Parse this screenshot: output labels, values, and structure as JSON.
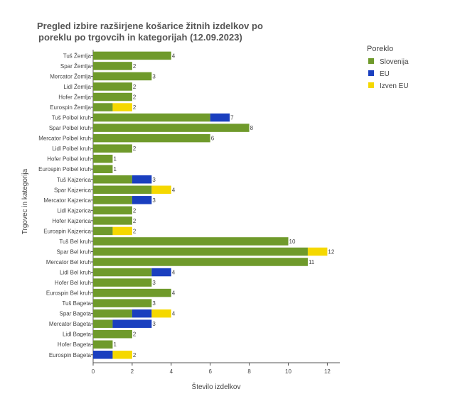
{
  "chart_data": {
    "type": "bar",
    "orientation": "horizontal",
    "stacked": true,
    "title_lines": [
      "Pregled izbire razširjene košarice žitnih izdelkov po",
      "poreklu po trgovcih in kategorijah (12.09.2023)"
    ],
    "xlabel": "Število izdelkov",
    "ylabel": "Trgovec in kategorija",
    "xlim": [
      0,
      12.6
    ],
    "xticks": [
      0,
      2,
      4,
      6,
      8,
      10,
      12
    ],
    "grid": false,
    "legend": {
      "title": "Poreklo",
      "position": "top-right"
    },
    "categories": [
      "Tuš Žemlja",
      "Spar Žemlja",
      "Mercator Žemlja",
      "Lidl Žemlja",
      "Hofer Žemlja",
      "Eurospin Žemlja",
      "Tuš Polbel kruh",
      "Spar Polbel kruh",
      "Mercator Polbel kruh",
      "Lidl Polbel kruh",
      "Hofer Polbel kruh",
      "Eurospin Polbel kruh",
      "Tuš Kajzerica",
      "Spar Kajzerica",
      "Mercator Kajzerica",
      "Lidl Kajzerica",
      "Hofer Kajzerica",
      "Eurospin Kajzerica",
      "Tuš Bel kruh",
      "Spar Bel kruh",
      "Mercator Bel kruh",
      "Lidl Bel kruh",
      "Hofer Bel kruh",
      "Eurospin Bel kruh",
      "Tuš Bageta",
      "Spar Bageta",
      "Mercator Bageta",
      "Lidl Bageta",
      "Hofer Bageta",
      "Eurospin Bageta"
    ],
    "series": [
      {
        "name": "Slovenija",
        "color": "#6f9a2b",
        "values": [
          4,
          2,
          3,
          2,
          2,
          1,
          6,
          8,
          6,
          2,
          1,
          1,
          2,
          3,
          2,
          2,
          2,
          1,
          10,
          11,
          11,
          3,
          3,
          4,
          3,
          2,
          1,
          2,
          1,
          0
        ]
      },
      {
        "name": "EU",
        "color": "#1a3fbf",
        "values": [
          0,
          0,
          0,
          0,
          0,
          0,
          1,
          0,
          0,
          0,
          0,
          0,
          1,
          0,
          1,
          0,
          0,
          0,
          0,
          0,
          0,
          1,
          0,
          0,
          0,
          1,
          2,
          0,
          0,
          1
        ]
      },
      {
        "name": "Izven EU",
        "color": "#f5d800",
        "values": [
          0,
          0,
          0,
          0,
          0,
          1,
          0,
          0,
          0,
          0,
          0,
          0,
          0,
          1,
          0,
          0,
          0,
          1,
          0,
          1,
          0,
          0,
          0,
          0,
          0,
          1,
          0,
          0,
          0,
          1
        ]
      }
    ],
    "totals": [
      4,
      2,
      3,
      2,
      2,
      2,
      7,
      8,
      6,
      2,
      1,
      1,
      3,
      4,
      3,
      2,
      2,
      2,
      10,
      12,
      11,
      4,
      3,
      4,
      3,
      4,
      3,
      2,
      1,
      2
    ]
  }
}
